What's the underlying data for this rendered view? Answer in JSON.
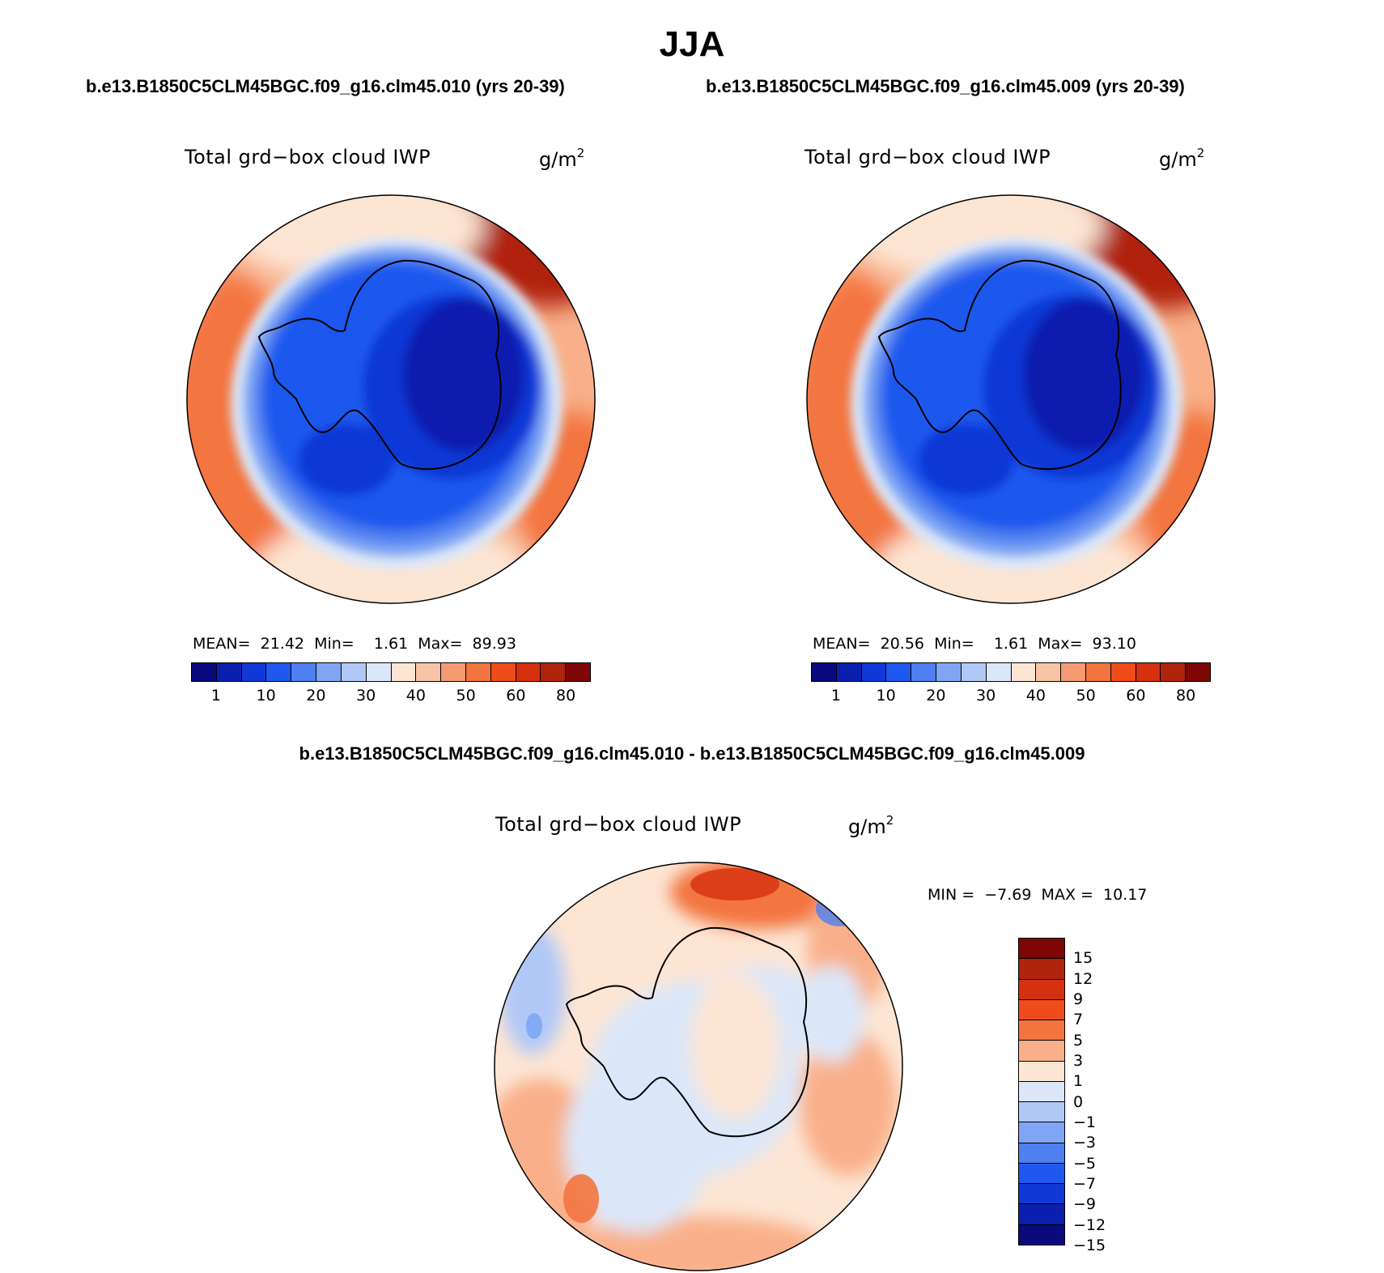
{
  "title": "JJA",
  "case_left": "b.e13.B1850C5CLM45BGC.f09_g16.clm45.010 (yrs 20-39)",
  "case_right": "b.e13.B1850C5CLM45BGC.f09_g16.clm45.009 (yrs 20-39)",
  "diff_title": "b.e13.B1850C5CLM45BGC.f09_g16.clm45.010 - b.e13.B1850C5CLM45BGC.f09_g16.clm45.009",
  "panels": {
    "left": {
      "variable": "Total grd−box cloud IWP",
      "units_base": "g/m",
      "units_exp": "2",
      "stats_text": "MEAN=  21.42  Min=    1.61  Max=  89.93",
      "mean": 21.42,
      "min": 1.61,
      "max": 89.93
    },
    "right": {
      "variable": "Total grd−box cloud IWP",
      "units_base": "g/m",
      "units_exp": "2",
      "stats_text": "MEAN=  20.56  Min=    1.61  Max=  93.10",
      "mean": 20.56,
      "min": 1.61,
      "max": 93.1
    },
    "diff": {
      "variable": "Total grd−box cloud IWP",
      "units_base": "g/m",
      "units_exp": "2",
      "stats_text": "MIN =  −7.69  MAX =  10.17",
      "min": -7.69,
      "max": 10.17
    }
  },
  "field_colorbar": {
    "ticks": [
      "1",
      "10",
      "20",
      "30",
      "40",
      "50",
      "60",
      "80"
    ],
    "colors": [
      "#0a0a7e",
      "#0a1fae",
      "#0f38d6",
      "#1f58ee",
      "#4f7ff0",
      "#7fa6f4",
      "#b1c8f7",
      "#dbe7f9",
      "#fde5d4",
      "#f9c3a6",
      "#f59b73",
      "#f3743f",
      "#ef4c1c",
      "#d6310f",
      "#b0230c",
      "#7e0606"
    ]
  },
  "diff_colorbar": {
    "ticks": [
      "15",
      "12",
      "9",
      "7",
      "5",
      "3",
      "1",
      "0",
      "−1",
      "−3",
      "−5",
      "−7",
      "−9",
      "−12",
      "−15"
    ],
    "colors": [
      "#7e0606",
      "#b0230c",
      "#d6310f",
      "#ef4c1c",
      "#f3743f",
      "#f9b08a",
      "#fde5d4",
      "#dbe7f9",
      "#b1c8f7",
      "#7fa6f4",
      "#4f7ff0",
      "#1f58ee",
      "#0f38d6",
      "#0a1fae",
      "#0a0a7e"
    ]
  },
  "palette": {
    "deep_blue": "#0a1fae",
    "mid_blue": "#1f58ee",
    "light_blue": "#dbe7f9",
    "peach": "#fde5d4",
    "orange": "#f3743f",
    "red": "#d6310f",
    "dark_red": "#7e0606"
  }
}
